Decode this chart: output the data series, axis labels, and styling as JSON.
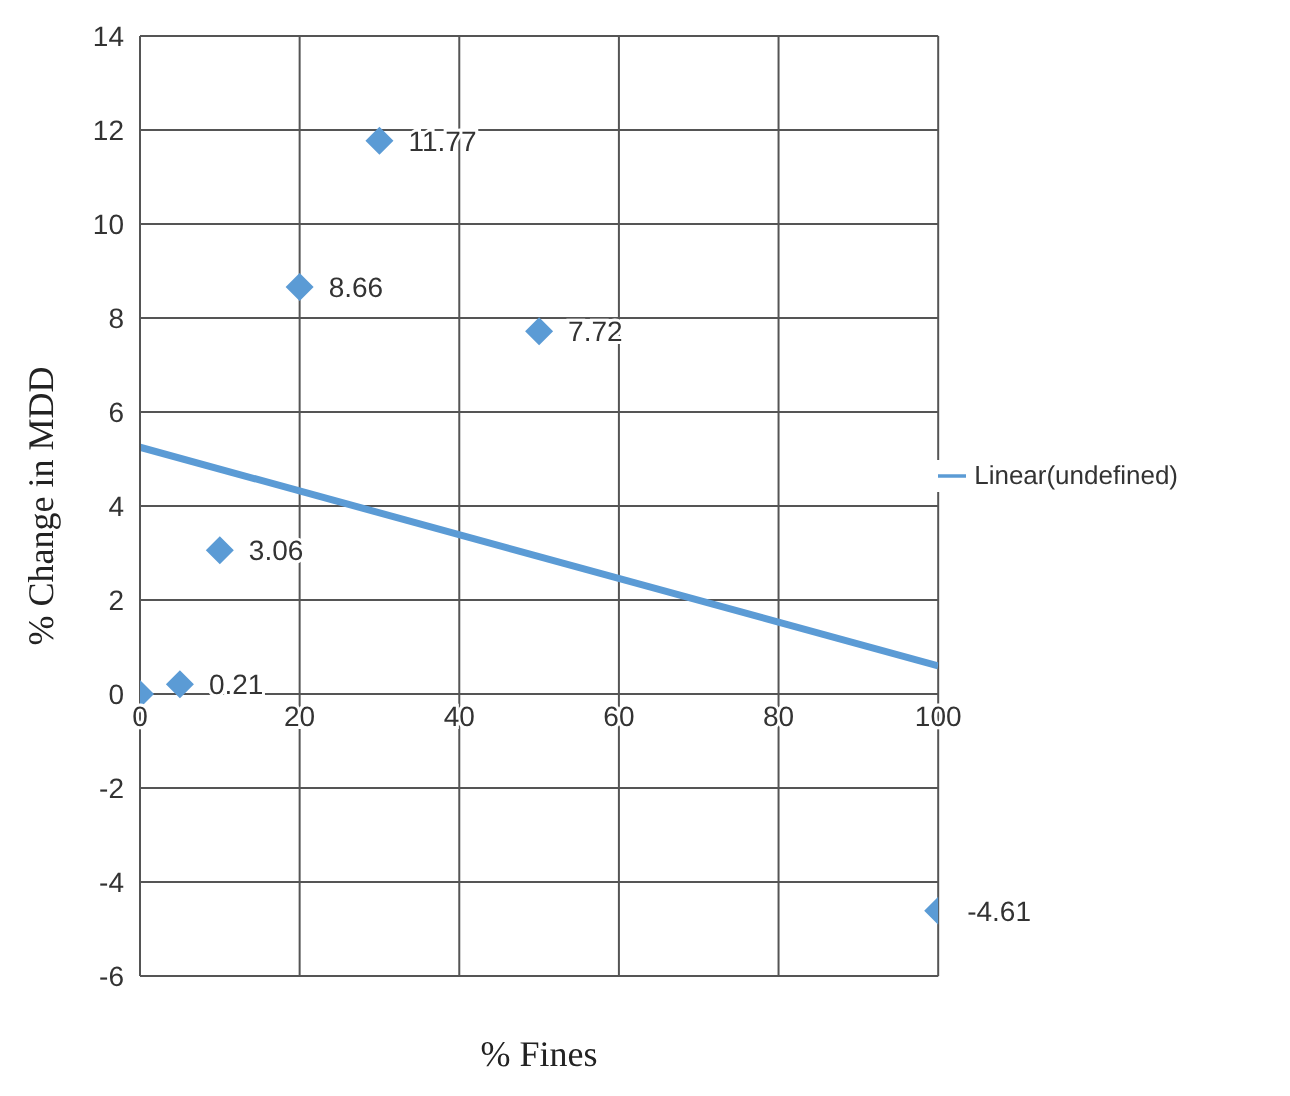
{
  "chart_data": {
    "type": "scatter",
    "xlabel": "% Fines",
    "ylabel": "% Change in MDD",
    "xlim": [
      0,
      100
    ],
    "xticks": [
      0,
      20,
      40,
      60,
      80,
      100
    ],
    "ylim": [
      -6,
      14
    ],
    "yticks": [
      -6,
      -4,
      -2,
      0,
      2,
      4,
      6,
      8,
      10,
      12,
      14
    ],
    "grid": true,
    "legend": "right",
    "marker": "diamond",
    "series": [
      {
        "color": "#5b9bd5",
        "x": [
          0,
          5,
          10,
          20,
          30,
          50,
          100
        ],
        "values": [
          0,
          0.21,
          3.06,
          8.66,
          11.77,
          7.72,
          -4.61
        ],
        "value_labels": [
          null,
          "0.21",
          "3.06",
          "8.66",
          "11.77",
          "7.72",
          "-4.61"
        ]
      },
      {
        "type": "line",
        "name": "Linear(undefined)",
        "color": "#5b9bd5",
        "x": [
          0,
          100
        ],
        "values": [
          5.25,
          0.6
        ],
        "marker": "none",
        "line_style": "solid"
      }
    ]
  }
}
